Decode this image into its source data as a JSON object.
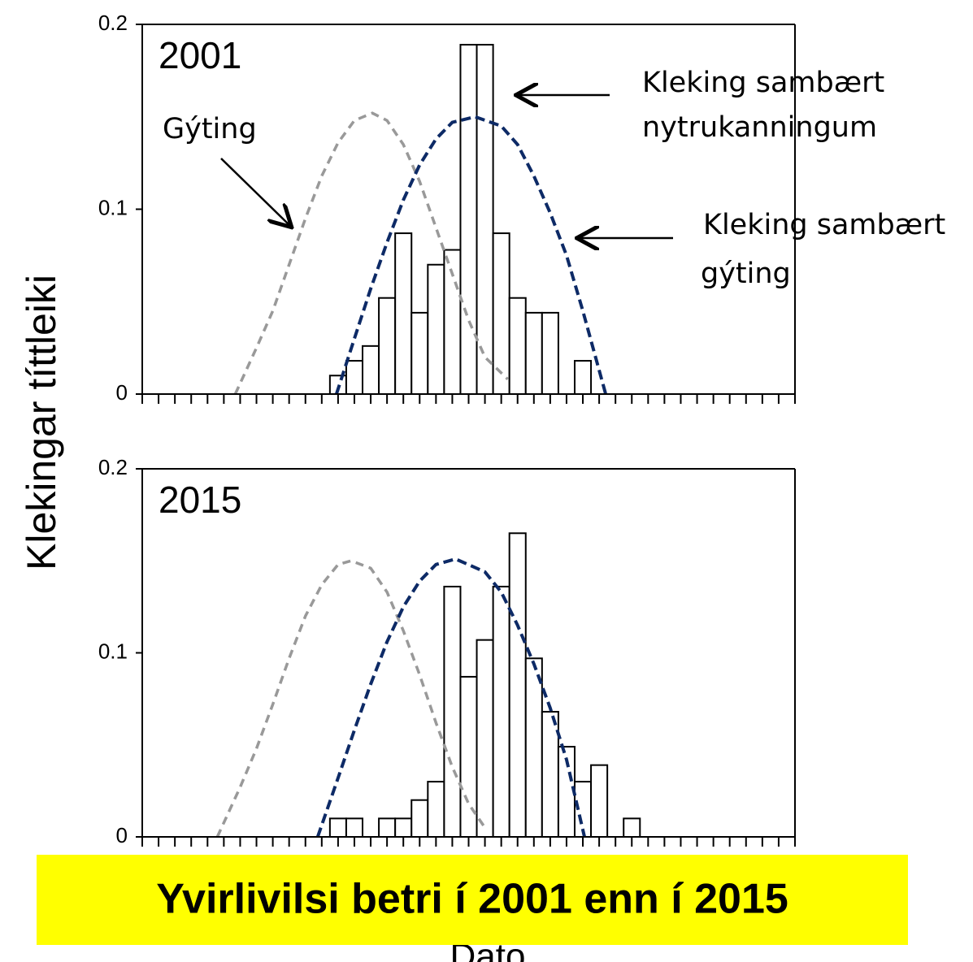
{
  "ylabel": "Klekingar títtleiki",
  "xlabel": "Dato",
  "banner": "Yvirlivilsi betri í 2001 enn í 2015",
  "annotations": {
    "gyting": "Gýting",
    "nytru": [
      "Kleking sambært",
      "nytrukanningum"
    ],
    "hatch": [
      "Kleking sambært",
      "gýting"
    ]
  },
  "chart_data": [
    {
      "type": "histogram",
      "title": "2001",
      "bins": [
        11.5,
        12.5,
        13.5,
        14.5,
        15.5,
        16.5,
        17.5,
        18.5,
        19.5,
        20.5,
        21.5,
        22.5,
        23.5,
        24.5,
        25.5,
        26.5,
        27.5
      ],
      "values": [
        0.01,
        0.018,
        0.026,
        0.052,
        0.087,
        0.044,
        0.07,
        0.078,
        0.189,
        0.189,
        0.087,
        0.052,
        0.044,
        0.044,
        0,
        0.018
      ],
      "bar_color": "#ffffff",
      "series": [
        {
          "name": "Gýting",
          "color": "#999999",
          "x": [
            5.7,
            7,
            8,
            9,
            10,
            11,
            12,
            13,
            14.1,
            15,
            16,
            17,
            18,
            19,
            20,
            21,
            22.4
          ],
          "values": [
            0,
            0.025,
            0.045,
            0.07,
            0.095,
            0.118,
            0.136,
            0.148,
            0.152,
            0.148,
            0.135,
            0.115,
            0.09,
            0.065,
            0.04,
            0.02,
            0.008
          ]
        },
        {
          "name": "Kleking sambært gýting",
          "color": "#0d2a66",
          "x": [
            11.9,
            13,
            14,
            15,
            16,
            17,
            18,
            19,
            20.4,
            22,
            23,
            24,
            25,
            26,
            27,
            28.4
          ],
          "values": [
            0,
            0.03,
            0.057,
            0.082,
            0.105,
            0.124,
            0.138,
            0.147,
            0.15,
            0.145,
            0.135,
            0.118,
            0.098,
            0.075,
            0.045,
            0
          ]
        }
      ],
      "xlim": [
        0,
        40
      ],
      "xticks": [
        0,
        1,
        2,
        3,
        4,
        5,
        6,
        7,
        8,
        9,
        10,
        11,
        12,
        13,
        14,
        15,
        16,
        17,
        18,
        19,
        20,
        21,
        22,
        23,
        24,
        25,
        26,
        27,
        28,
        29,
        30,
        31,
        32,
        33,
        34,
        35,
        36,
        37,
        38,
        39,
        40
      ],
      "ylim": [
        0,
        0.2
      ],
      "yticks": [
        0,
        0.1,
        0.2
      ]
    },
    {
      "type": "histogram",
      "title": "2015",
      "bins": [
        11.5,
        12.5,
        13.5,
        14.5,
        15.5,
        16.5,
        17.5,
        18.5,
        19.5,
        20.5,
        21.5,
        22.5,
        23.5,
        24.5,
        25.5,
        26.5,
        27.5,
        28.5,
        29.5,
        30.5
      ],
      "values": [
        0.01,
        0.01,
        0,
        0.01,
        0.01,
        0.02,
        0.03,
        0.136,
        0.087,
        0.107,
        0.136,
        0.165,
        0.097,
        0.068,
        0.049,
        0.03,
        0.039,
        0,
        0.01
      ],
      "bar_color": "#ffffff",
      "series": [
        {
          "name": "Gýting",
          "color": "#999999",
          "x": [
            4.6,
            6,
            7,
            8,
            9,
            10,
            11,
            12,
            12.8,
            14,
            15,
            16,
            17,
            18,
            19,
            20,
            21
          ],
          "values": [
            0,
            0.027,
            0.048,
            0.072,
            0.097,
            0.12,
            0.137,
            0.148,
            0.15,
            0.146,
            0.133,
            0.112,
            0.088,
            0.062,
            0.038,
            0.018,
            0.005
          ]
        },
        {
          "name": "Kleking sambært gýting",
          "color": "#0d2a66",
          "x": [
            10.75,
            12,
            13,
            14,
            15,
            16,
            17,
            18,
            19.2,
            21,
            22,
            23,
            24,
            25,
            26,
            27.1
          ],
          "values": [
            0,
            0.032,
            0.058,
            0.083,
            0.106,
            0.125,
            0.139,
            0.148,
            0.151,
            0.144,
            0.133,
            0.115,
            0.094,
            0.07,
            0.042,
            0
          ]
        }
      ],
      "xlim": [
        0,
        40
      ],
      "xticks": [
        0,
        1,
        2,
        3,
        4,
        5,
        6,
        7,
        8,
        9,
        10,
        11,
        12,
        13,
        14,
        15,
        16,
        17,
        18,
        19,
        20,
        21,
        22,
        23,
        24,
        25,
        26,
        27,
        28,
        29,
        30,
        31,
        32,
        33,
        34,
        35,
        36,
        37,
        38,
        39,
        40
      ],
      "ylim": [
        0,
        0.2
      ],
      "yticks": [
        0,
        0.1,
        0.2
      ]
    }
  ]
}
